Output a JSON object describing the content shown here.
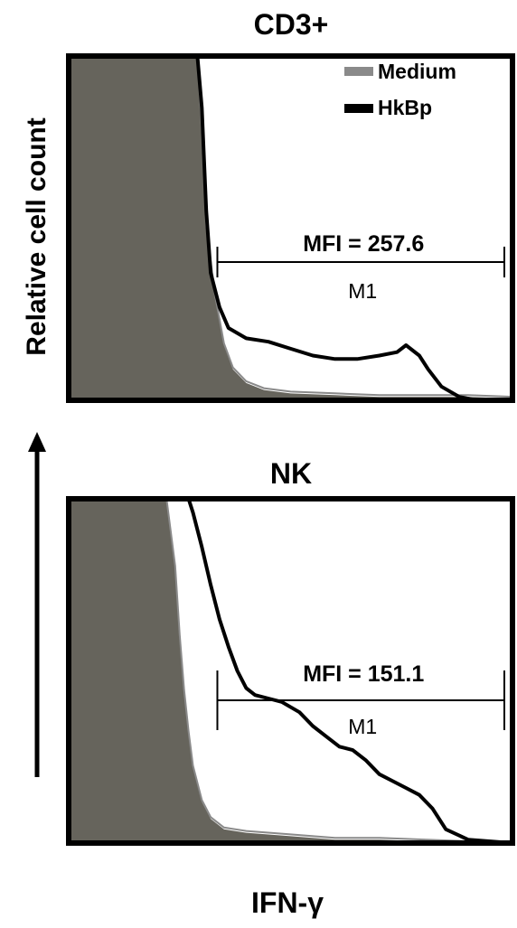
{
  "figure": {
    "ylabel": "Relative cell count",
    "xlabel": "IFN-γ"
  },
  "colors": {
    "medium_fill": "#66645c",
    "hkbp_line": "#000000",
    "medium_line": "#8a8a8a",
    "frame": "#000000"
  },
  "legend": {
    "position": "top-right of upper panel",
    "items": [
      {
        "label": "Medium",
        "color": "#8a8a8a"
      },
      {
        "label": "HkBp",
        "color": "#000000"
      }
    ]
  },
  "chart_data": [
    {
      "type": "area",
      "title": "CD3+",
      "ylabel": "Relative cell count",
      "series": [
        {
          "name": "Medium",
          "x": [
            0.0,
            0.29,
            0.3,
            0.31,
            0.33,
            0.35,
            0.37,
            0.4,
            0.44,
            0.5,
            0.6,
            0.7,
            0.8,
            0.9,
            1.0
          ],
          "values": [
            1.0,
            1.0,
            0.78,
            0.5,
            0.3,
            0.16,
            0.09,
            0.05,
            0.03,
            0.02,
            0.015,
            0.01,
            0.01,
            0.01,
            0.005
          ]
        },
        {
          "name": "HkBp",
          "x": [
            0.29,
            0.3,
            0.31,
            0.32,
            0.34,
            0.36,
            0.4,
            0.45,
            0.5,
            0.55,
            0.6,
            0.65,
            0.7,
            0.74,
            0.76,
            0.79,
            0.81,
            0.84,
            0.88,
            0.92,
            1.0
          ],
          "values": [
            1.0,
            0.85,
            0.55,
            0.37,
            0.27,
            0.21,
            0.18,
            0.17,
            0.15,
            0.13,
            0.12,
            0.12,
            0.13,
            0.14,
            0.16,
            0.13,
            0.09,
            0.04,
            0.01,
            0.0,
            0.0
          ]
        }
      ],
      "marker": {
        "label": "M1",
        "range": [
          0.335,
          1.0
        ],
        "annotation": "MFI = 257.6"
      }
    },
    {
      "type": "area",
      "title": "NK",
      "series": [
        {
          "name": "Medium",
          "x": [
            0.0,
            0.22,
            0.24,
            0.25,
            0.26,
            0.27,
            0.28,
            0.3,
            0.32,
            0.35,
            0.4,
            0.5,
            0.6,
            0.7,
            0.8,
            0.9,
            1.0
          ],
          "values": [
            1.0,
            1.0,
            0.8,
            0.6,
            0.44,
            0.32,
            0.22,
            0.12,
            0.07,
            0.04,
            0.03,
            0.02,
            0.01,
            0.01,
            0.005,
            0.0,
            0.0
          ]
        },
        {
          "name": "HkBp",
          "x": [
            0.27,
            0.28,
            0.3,
            0.32,
            0.34,
            0.36,
            0.38,
            0.4,
            0.42,
            0.45,
            0.48,
            0.52,
            0.55,
            0.58,
            0.61,
            0.64,
            0.67,
            0.7,
            0.73,
            0.76,
            0.79,
            0.82,
            0.85,
            0.9,
            1.0
          ],
          "values": [
            1.0,
            0.96,
            0.86,
            0.75,
            0.65,
            0.57,
            0.5,
            0.45,
            0.43,
            0.42,
            0.41,
            0.38,
            0.34,
            0.31,
            0.28,
            0.27,
            0.24,
            0.2,
            0.18,
            0.16,
            0.14,
            0.1,
            0.04,
            0.01,
            0.0
          ]
        }
      ],
      "marker": {
        "label": "M1",
        "range": [
          0.335,
          1.0
        ],
        "annotation": "MFI = 151.1"
      }
    }
  ]
}
